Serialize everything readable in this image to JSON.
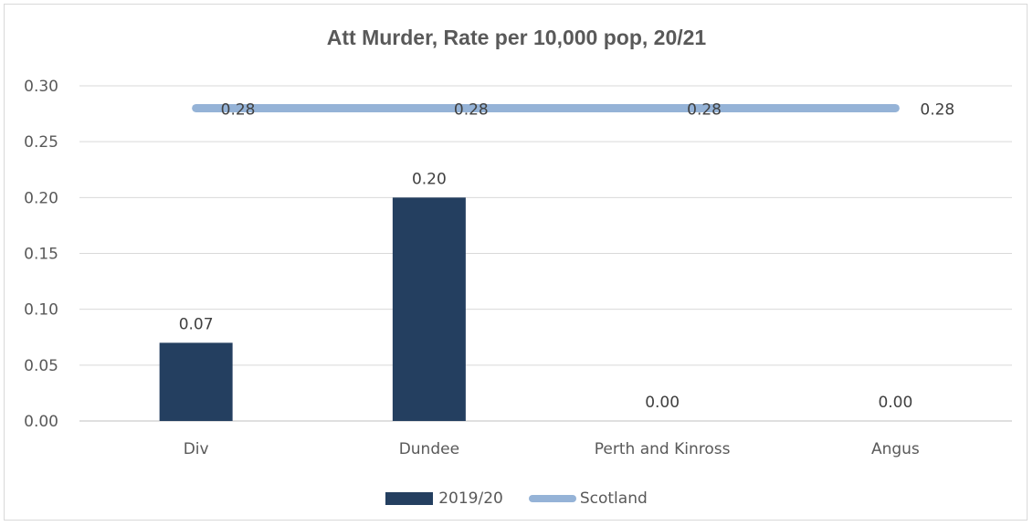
{
  "chart_data": {
    "type": "bar",
    "title": "Att Murder, Rate per 10,000 pop, 20/21",
    "categories": [
      "Div",
      "Dundee",
      "Perth and Kinross",
      "Angus"
    ],
    "series": [
      {
        "name": "2019/20",
        "kind": "bar",
        "color": "#243f60",
        "values": [
          0.07,
          0.2,
          0.0,
          0.0
        ],
        "labels": [
          "0.07",
          "0.20",
          "0.00",
          "0.00"
        ]
      },
      {
        "name": "Scotland",
        "kind": "line",
        "color": "#95b3d7",
        "values": [
          0.28,
          0.28,
          0.28,
          0.28
        ],
        "labels": [
          "0.28",
          "0.28",
          "0.28",
          "0.28"
        ]
      }
    ],
    "ylim": [
      0,
      0.3
    ],
    "yticks": [
      "0.00",
      "0.05",
      "0.10",
      "0.15",
      "0.20",
      "0.25",
      "0.30"
    ],
    "grid": true,
    "legend_position": "bottom"
  }
}
